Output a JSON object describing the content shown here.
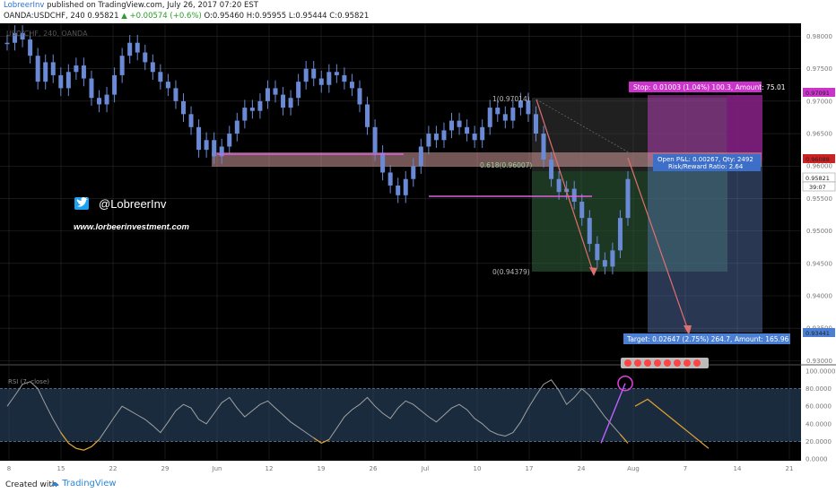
{
  "header": {
    "author": "LobreerInv",
    "published": " published on TradingView.com, July 26, 2017 07:20 EST",
    "ohlc_line_prefix": "OANDA:USDCHF, 240  0.95821  ",
    "change": "▲ +0.00574 (+0.6%)",
    "ohlc_line_suffix": "  O:0.95460  H:0.95955  L:0.95444  C:0.95821"
  },
  "watermark": "USD/CHF, 240, OANDA",
  "branding": {
    "twitter_handle": "@LobreerInv",
    "website": "www.lorbeerinvestment.com"
  },
  "footer": {
    "created": "Created with",
    "brand": "TradingView"
  },
  "colors": {
    "background": "#000000",
    "grid": "#2a2a2a",
    "candles": "#6a8ad6",
    "support": "#e060e0",
    "zone": "#d49a9a",
    "arrow": "#e07070",
    "rsi_line": "#a0a0a0",
    "rsi_oversold": "#e0a030",
    "rsi_band": "#2f4f6f",
    "stop_box": "#b040b0",
    "target_box": "#5a7ab8",
    "fib_box": "#2e5e3a"
  },
  "annotations": {
    "fib_top": "1(0.97014)",
    "fib_mid": "0.618(0.96007)",
    "fib_bottom": "0(0.94379)",
    "stop_box": "Stop: 0.01003 (1.04%) 100.3, Amount: 75.01",
    "pnl_line1": "Open P&L: 0.00267, Qty: 2492",
    "pnl_line2": "Risk/Reward Ratio: 2.64",
    "target_box": "Target: 0.02647 (2.75%) 264.7, Amount: 165.96",
    "rsi_label": "RSI (7, close)",
    "countdown": "39:07"
  },
  "price_labels": {
    "stop_price": "0.97091",
    "entry_price": "0.96088",
    "last_price": "0.95821",
    "target_price": "0.93441"
  },
  "chart_data": [
    {
      "type": "candlestick",
      "title": "USD/CHF, 240, OANDA",
      "x_ticks": [
        "8",
        "15",
        "22",
        "29",
        "Jun",
        "12",
        "19",
        "26",
        "Jul",
        "10",
        "17",
        "24",
        "Aug",
        "7",
        "14",
        "21"
      ],
      "y_ticks": [
        "0.98000",
        "0.97500",
        "0.97000",
        "0.96500",
        "0.96000",
        "0.95500",
        "0.95000",
        "0.94500",
        "0.94000",
        "0.93500",
        "0.93000"
      ],
      "ylim": [
        0.9295,
        0.982
      ],
      "series": [
        {
          "name": "USDCHF",
          "values": [
            0.979,
            0.9805,
            0.9795,
            0.977,
            0.973,
            0.976,
            0.974,
            0.972,
            0.9745,
            0.9755,
            0.9735,
            0.9705,
            0.9695,
            0.971,
            0.974,
            0.977,
            0.979,
            0.9775,
            0.976,
            0.9745,
            0.973,
            0.972,
            0.97,
            0.968,
            0.966,
            0.9625,
            0.964,
            0.9615,
            0.963,
            0.965,
            0.967,
            0.969,
            0.9685,
            0.97,
            0.972,
            0.971,
            0.969,
            0.9705,
            0.973,
            0.975,
            0.9735,
            0.9725,
            0.9745,
            0.974,
            0.973,
            0.972,
            0.9695,
            0.966,
            0.962,
            0.959,
            0.957,
            0.9555,
            0.958,
            0.96,
            0.963,
            0.965,
            0.964,
            0.9655,
            0.967,
            0.966,
            0.965,
            0.964,
            0.966,
            0.969,
            0.968,
            0.967,
            0.969,
            0.9701,
            0.968,
            0.965,
            0.961,
            0.958,
            0.956,
            0.9565,
            0.9545,
            0.952,
            0.948,
            0.9455,
            0.9445,
            0.947,
            0.952,
            0.958
          ]
        }
      ],
      "levels": [
        {
          "name": "resistance zone",
          "from": 0.9602,
          "to": 0.9619
        },
        {
          "name": "support line",
          "value": 0.9624
        },
        {
          "name": "support line 2",
          "value": 0.9552
        }
      ]
    },
    {
      "type": "line",
      "title": "RSI (7, close)",
      "y_ticks": [
        "100.0000",
        "80.0000",
        "60.0000",
        "40.0000",
        "20.0000",
        "0.0000"
      ],
      "ylim": [
        0,
        100
      ],
      "band": [
        20,
        80
      ],
      "series": [
        {
          "name": "RSI (7, close)",
          "values": [
            60,
            72,
            85,
            88,
            80,
            62,
            45,
            30,
            18,
            12,
            10,
            14,
            22,
            35,
            48,
            60,
            55,
            50,
            45,
            38,
            30,
            42,
            55,
            62,
            58,
            45,
            40,
            52,
            64,
            70,
            58,
            48,
            55,
            62,
            66,
            58,
            50,
            42,
            36,
            30,
            24,
            18,
            22,
            35,
            48,
            56,
            62,
            70,
            60,
            52,
            46,
            58,
            66,
            62,
            55,
            48,
            42,
            50,
            58,
            62,
            56,
            46,
            40,
            32,
            28,
            26,
            30,
            42,
            58,
            72,
            85,
            90,
            78,
            62,
            70,
            80,
            72,
            60,
            48,
            38,
            28,
            18
          ]
        }
      ]
    }
  ]
}
